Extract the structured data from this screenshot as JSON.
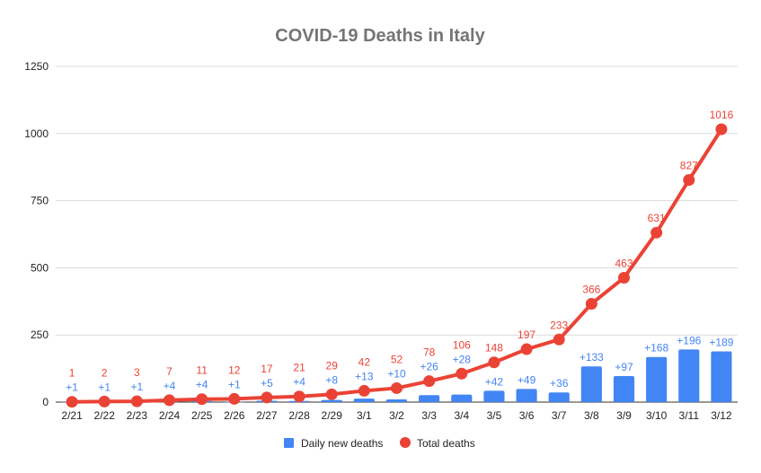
{
  "chart_data": {
    "type": "bar",
    "title": "COVID-19 Deaths in Italy",
    "xlabel": "",
    "ylabel": "",
    "ylim": [
      0,
      1250
    ],
    "yticks": [
      0,
      250,
      500,
      750,
      1000,
      1250
    ],
    "grid": true,
    "legend_position": "bottom",
    "categories": [
      "2/21",
      "2/22",
      "2/23",
      "2/24",
      "2/25",
      "2/26",
      "2/27",
      "2/28",
      "2/29",
      "3/1",
      "3/2",
      "3/3",
      "3/4",
      "3/5",
      "3/6",
      "3/7",
      "3/8",
      "3/9",
      "3/10",
      "3/11",
      "3/12"
    ],
    "series": [
      {
        "name": "Daily new deaths",
        "type": "bar",
        "color": "#4285f4",
        "values": [
          1,
          1,
          1,
          4,
          4,
          1,
          5,
          4,
          8,
          13,
          10,
          26,
          28,
          42,
          49,
          36,
          133,
          97,
          168,
          196,
          189
        ],
        "labels": [
          "+1",
          "+1",
          "+1",
          "+4",
          "+4",
          "+1",
          "+5",
          "+4",
          "+8",
          "+13",
          "+10",
          "+26",
          "+28",
          "+42",
          "+49",
          "+36",
          "+133",
          "+97",
          "+168",
          "+196",
          "+189"
        ]
      },
      {
        "name": "Total deaths",
        "type": "line",
        "color": "#ea4335",
        "values": [
          1,
          2,
          3,
          7,
          11,
          12,
          17,
          21,
          29,
          42,
          52,
          78,
          106,
          148,
          197,
          233,
          366,
          463,
          631,
          827,
          1016
        ],
        "labels": [
          "1",
          "2",
          "3",
          "7",
          "11",
          "12",
          "17",
          "21",
          "29",
          "42",
          "52",
          "78",
          "106",
          "148",
          "197",
          "233",
          "366",
          "463",
          "631",
          "827",
          "1016"
        ]
      }
    ]
  }
}
